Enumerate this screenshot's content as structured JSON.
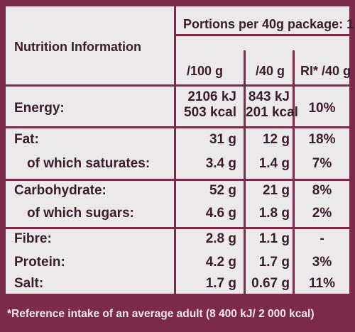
{
  "table": {
    "title": "Nutrition Information",
    "portions_header": "Portions per 40g package: 1",
    "col_per100": "/100 g",
    "col_per40": "/40 g",
    "col_ri": "RI* /40 g",
    "rows": [
      {
        "label": "Energy:",
        "per100_line1": "2106 kJ",
        "per100_line2": "503 kcal",
        "per40_line1": "843 kJ",
        "per40_line2": "201 kcal",
        "ri": "10%"
      },
      {
        "label": "Fat:",
        "per100": "31 g",
        "per40": "12 g",
        "ri": "18%"
      },
      {
        "label": "of which saturates:",
        "per100": "3.4 g",
        "per40": "1.4 g",
        "ri": "7%"
      },
      {
        "label": "Carbohydrate:",
        "per100": "52 g",
        "per40": "21 g",
        "ri": "8%"
      },
      {
        "label": "of which sugars:",
        "per100": "4.6 g",
        "per40": "1.8 g",
        "ri": "2%"
      },
      {
        "label": "Fibre:",
        "per100": "2.8 g",
        "per40": "1.1 g",
        "ri": "-"
      },
      {
        "label": "Protein:",
        "per100": "4.2 g",
        "per40": "1.7 g",
        "ri": "3%"
      },
      {
        "label": "Salt:",
        "per100": "1.7 g",
        "per40": "0.67 g",
        "ri": "11%"
      }
    ]
  },
  "footnote": "*Reference intake of an average adult (8 400 kJ/ 2 000 kcal)",
  "colors": {
    "border": "#7b2a4a",
    "panel": "#ece9ea",
    "text": "#3a1c2c"
  }
}
